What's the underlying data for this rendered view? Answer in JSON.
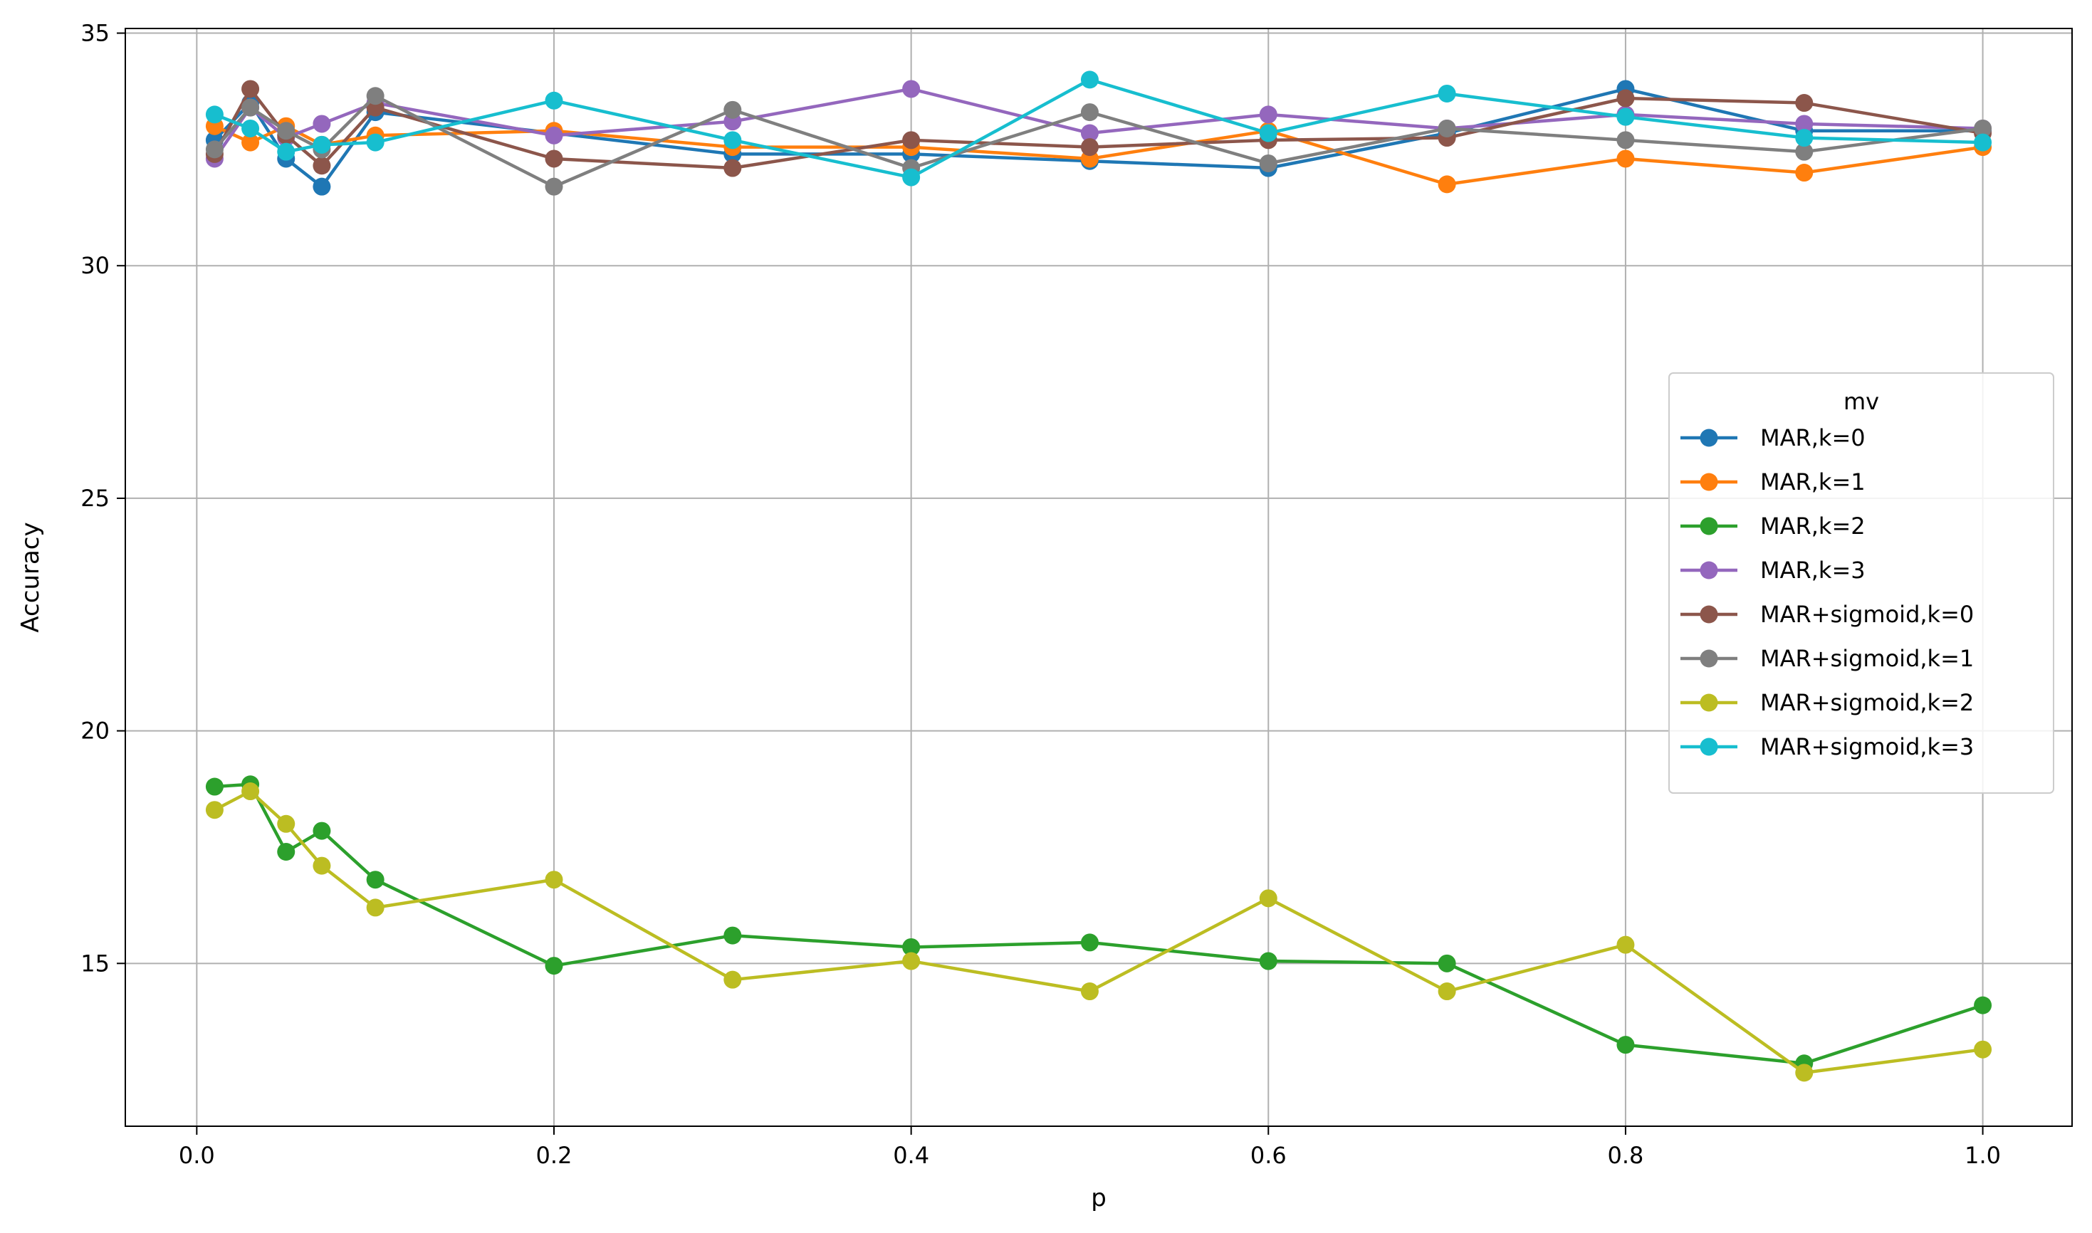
{
  "chart_data": {
    "type": "line",
    "title": "",
    "xlabel": "p",
    "ylabel": "Accuracy",
    "xlim": [
      -0.04,
      1.05
    ],
    "ylim": [
      11.5,
      35.1
    ],
    "xticks": [
      0.0,
      0.2,
      0.4,
      0.6,
      0.8,
      1.0
    ],
    "xtick_labels": [
      "0.0",
      "0.2",
      "0.4",
      "0.6",
      "0.8",
      "1.0"
    ],
    "yticks": [
      15,
      20,
      25,
      30,
      35
    ],
    "ytick_labels": [
      "15",
      "20",
      "25",
      "30",
      "35"
    ],
    "grid": true,
    "legend": {
      "title": "mv",
      "placement": "center-right"
    },
    "x": [
      0.01,
      0.03,
      0.05,
      0.07,
      0.1,
      0.2,
      0.3,
      0.4,
      0.5,
      0.6,
      0.7,
      0.8,
      0.9,
      1.0
    ],
    "series": [
      {
        "name": "MAR,k=0",
        "color": "#1f77b4",
        "values": [
          32.7,
          33.5,
          32.3,
          31.7,
          33.3,
          32.85,
          32.4,
          32.4,
          32.25,
          32.1,
          32.85,
          33.8,
          32.9,
          32.9
        ]
      },
      {
        "name": "MAR,k=1",
        "color": "#ff7f0e",
        "values": [
          33.0,
          32.65,
          33.0,
          32.6,
          32.8,
          32.9,
          32.55,
          32.55,
          32.3,
          32.9,
          31.75,
          32.3,
          32.0,
          32.55
        ]
      },
      {
        "name": "MAR,k=2",
        "color": "#2ca02c",
        "values": [
          18.8,
          18.85,
          17.4,
          17.85,
          16.8,
          14.95,
          15.6,
          15.35,
          15.45,
          15.05,
          15.0,
          13.25,
          12.85,
          14.1
        ]
      },
      {
        "name": "MAR,k=3",
        "color": "#9467bd",
        "values": [
          32.3,
          33.4,
          32.75,
          33.05,
          33.5,
          32.8,
          33.1,
          33.8,
          32.85,
          33.25,
          32.95,
          33.25,
          33.05,
          32.95
        ]
      },
      {
        "name": "MAR+sigmoid,k=0",
        "color": "#8c564b",
        "values": [
          32.4,
          33.8,
          32.8,
          32.15,
          33.4,
          32.3,
          32.1,
          32.7,
          32.55,
          32.7,
          32.75,
          33.6,
          33.5,
          32.85
        ]
      },
      {
        "name": "MAR+sigmoid,k=1",
        "color": "#7f7f7f",
        "values": [
          32.5,
          33.4,
          32.9,
          32.5,
          33.65,
          31.7,
          33.35,
          32.1,
          33.3,
          32.2,
          32.95,
          32.7,
          32.45,
          32.95
        ]
      },
      {
        "name": "MAR+sigmoid,k=2",
        "color": "#bcbd22",
        "values": [
          18.3,
          18.7,
          18.0,
          17.1,
          16.2,
          16.8,
          14.65,
          15.05,
          14.4,
          16.4,
          14.4,
          15.4,
          12.65,
          13.15
        ]
      },
      {
        "name": "MAR+sigmoid,k=3",
        "color": "#17becf",
        "values": [
          33.25,
          32.95,
          32.45,
          32.6,
          32.65,
          33.55,
          32.7,
          31.9,
          34.0,
          32.85,
          33.7,
          33.2,
          32.75,
          32.65
        ]
      }
    ]
  }
}
